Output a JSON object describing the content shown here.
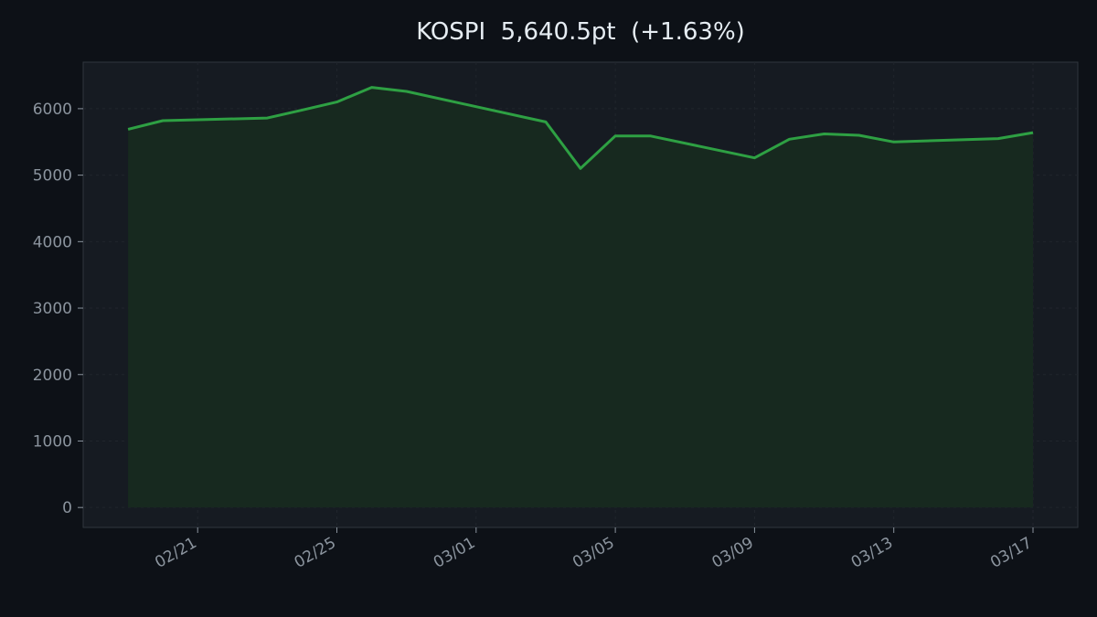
{
  "title": "KOSPI  5,640.5pt  (+1.63%)",
  "colors": {
    "background": "#0d1117",
    "plot_background": "#161b22",
    "line": "#2ea043",
    "fill": "#17291f",
    "grid": "#21262d",
    "tick_label": "#8b949e",
    "spine": "#30363d"
  },
  "chart_data": {
    "type": "area",
    "title": "KOSPI  5,640.5pt  (+1.63%)",
    "xlabel": "",
    "ylabel": "",
    "ylim": [
      -300,
      6700
    ],
    "xlim": [
      "2026-02-18",
      "2026-03-17"
    ],
    "grid": true,
    "yticks": [
      0,
      1000,
      2000,
      3000,
      4000,
      5000,
      6000
    ],
    "xticks": [
      {
        "date": "2026-02-21",
        "label": "02/21"
      },
      {
        "date": "2026-02-25",
        "label": "02/25"
      },
      {
        "date": "2026-03-01",
        "label": "03/01"
      },
      {
        "date": "2026-03-05",
        "label": "03/05"
      },
      {
        "date": "2026-03-09",
        "label": "03/09"
      },
      {
        "date": "2026-03-13",
        "label": "03/13"
      },
      {
        "date": "2026-03-17",
        "label": "03/17"
      }
    ],
    "series": [
      {
        "name": "",
        "points": [
          {
            "x": "2026-02-19",
            "y": 5690
          },
          {
            "x": "2026-02-20",
            "y": 5820
          },
          {
            "x": "2026-02-23",
            "y": 5860
          },
          {
            "x": "2026-02-24",
            "y": 5980
          },
          {
            "x": "2026-02-25",
            "y": 6100
          },
          {
            "x": "2026-02-26",
            "y": 6320
          },
          {
            "x": "2026-02-27",
            "y": 6260
          },
          {
            "x": "2026-03-03",
            "y": 5800
          },
          {
            "x": "2026-03-04",
            "y": 5100
          },
          {
            "x": "2026-03-05",
            "y": 5590
          },
          {
            "x": "2026-03-06",
            "y": 5590
          },
          {
            "x": "2026-03-09",
            "y": 5260
          },
          {
            "x": "2026-03-10",
            "y": 5540
          },
          {
            "x": "2026-03-11",
            "y": 5620
          },
          {
            "x": "2026-03-12",
            "y": 5600
          },
          {
            "x": "2026-03-13",
            "y": 5500
          },
          {
            "x": "2026-03-16",
            "y": 5550
          },
          {
            "x": "2026-03-17",
            "y": 5640
          }
        ]
      }
    ]
  }
}
